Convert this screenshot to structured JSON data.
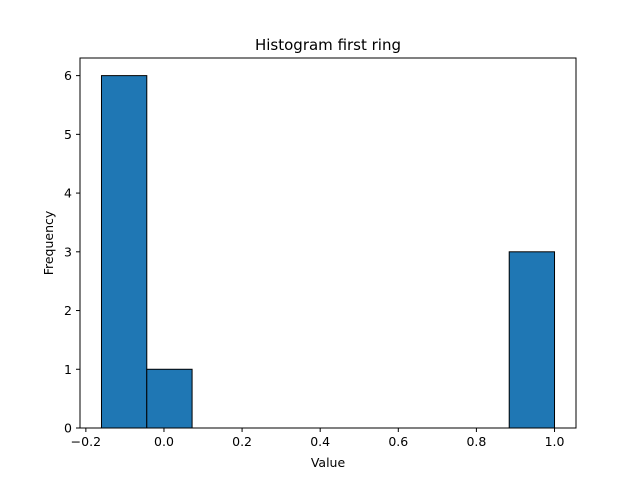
{
  "chart_data": {
    "type": "bar",
    "title": "Histogram first ring",
    "xlabel": "Value",
    "ylabel": "Frequency",
    "xlim": [
      -0.215,
      1.055
    ],
    "ylim": [
      0,
      6.3
    ],
    "grid": false,
    "bins": [
      {
        "x0": -0.16,
        "x1": -0.044,
        "count": 6
      },
      {
        "x0": -0.044,
        "x1": 0.072,
        "count": 1
      },
      {
        "x0": 0.072,
        "x1": 0.188,
        "count": 0
      },
      {
        "x0": 0.188,
        "x1": 0.304,
        "count": 0
      },
      {
        "x0": 0.304,
        "x1": 0.42,
        "count": 0
      },
      {
        "x0": 0.42,
        "x1": 0.536,
        "count": 0
      },
      {
        "x0": 0.536,
        "x1": 0.652,
        "count": 0
      },
      {
        "x0": 0.652,
        "x1": 0.768,
        "count": 0
      },
      {
        "x0": 0.768,
        "x1": 0.884,
        "count": 0
      },
      {
        "x0": 0.884,
        "x1": 1.0,
        "count": 3
      }
    ],
    "x_ticks": [
      {
        "value": -0.2,
        "label": "−0.2"
      },
      {
        "value": 0.0,
        "label": "0.0"
      },
      {
        "value": 0.2,
        "label": "0.2"
      },
      {
        "value": 0.4,
        "label": "0.4"
      },
      {
        "value": 0.6,
        "label": "0.6"
      },
      {
        "value": 0.8,
        "label": "0.8"
      },
      {
        "value": 1.0,
        "label": "1.0"
      }
    ],
    "y_ticks": [
      {
        "value": 0,
        "label": "0"
      },
      {
        "value": 1,
        "label": "1"
      },
      {
        "value": 2,
        "label": "2"
      },
      {
        "value": 3,
        "label": "3"
      },
      {
        "value": 4,
        "label": "4"
      },
      {
        "value": 5,
        "label": "5"
      },
      {
        "value": 6,
        "label": "6"
      }
    ],
    "colors": {
      "bar_fill": "#1f77b4",
      "bar_edge": "#000000",
      "axes": "#000000"
    }
  }
}
